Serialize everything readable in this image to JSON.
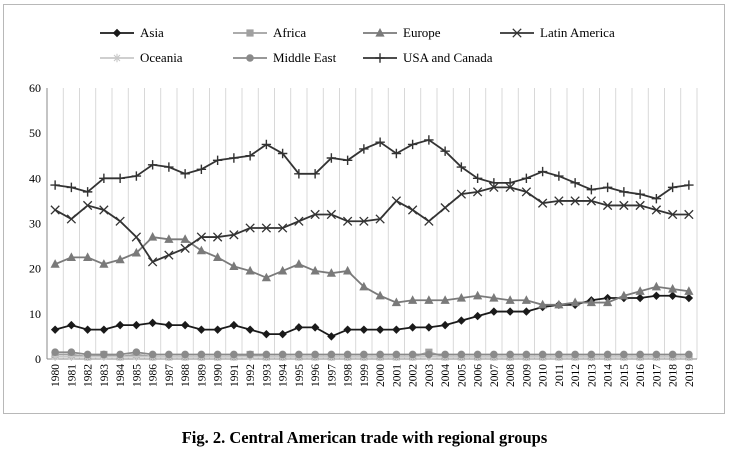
{
  "caption": "Fig. 2. Central American trade with regional groups",
  "chart_data": {
    "type": "line",
    "title": "",
    "xlabel": "",
    "ylabel": "",
    "ylim": [
      0,
      60
    ],
    "yticks": [
      0,
      10,
      20,
      30,
      40,
      50,
      60
    ],
    "grid": "vertical",
    "legend_position": "top",
    "categories": [
      "1980",
      "1981",
      "1982",
      "1983",
      "1984",
      "1985",
      "1986",
      "1987",
      "1988",
      "1989",
      "1990",
      "1991",
      "1992",
      "1993",
      "1994",
      "1995",
      "1996",
      "1997",
      "1998",
      "1999",
      "2000",
      "2001",
      "2002",
      "2003",
      "2004",
      "2005",
      "2006",
      "2007",
      "2008",
      "2009",
      "2010",
      "2011",
      "2012",
      "2013",
      "2014",
      "2015",
      "2016",
      "2017",
      "2018",
      "2019"
    ],
    "series": [
      {
        "name": "Asia",
        "marker": "diamond",
        "color": "#1a1a1a",
        "values": [
          6.5,
          7.5,
          6.5,
          6.5,
          7.5,
          7.5,
          8,
          7.5,
          7.5,
          6.5,
          6.5,
          7.5,
          6.5,
          5.5,
          5.5,
          7,
          7,
          5,
          6.5,
          6.5,
          6.5,
          6.5,
          7,
          7,
          7.5,
          8.5,
          9.5,
          10.5,
          10.5,
          10.5,
          11.5,
          12,
          12,
          13,
          13.5,
          13.5,
          13.5,
          14,
          14,
          13.5
        ]
      },
      {
        "name": "Africa",
        "marker": "square",
        "color": "#a0a0a0",
        "values": [
          1,
          1,
          0.5,
          1,
          0.5,
          1,
          0.5,
          0.5,
          0.5,
          0.5,
          0.5,
          0.5,
          1,
          0.5,
          0.5,
          0.5,
          0.5,
          0.5,
          0.5,
          0.5,
          0.5,
          0.5,
          0.5,
          1.5,
          0.5,
          0.5,
          0.5,
          0.5,
          0.5,
          0.5,
          0.5,
          0.5,
          0.5,
          0.5,
          0.5,
          0.5,
          0.5,
          0.5,
          0.5,
          0.5
        ]
      },
      {
        "name": "Europe",
        "marker": "triangle",
        "color": "#7a7a7a",
        "values": [
          21,
          22.5,
          22.5,
          21,
          22,
          23.5,
          27,
          26.5,
          26.5,
          24,
          22.5,
          20.5,
          19.5,
          18,
          19.5,
          21,
          19.5,
          19,
          19.5,
          16,
          14,
          12.5,
          13,
          13,
          13,
          13.5,
          14,
          13.5,
          13,
          13,
          12,
          12,
          12.5,
          12.5,
          12.5,
          14,
          15,
          16,
          15.5,
          15
        ]
      },
      {
        "name": "Latin America",
        "marker": "x",
        "color": "#333333",
        "values": [
          33,
          31,
          34,
          33,
          30.5,
          27,
          21.5,
          23,
          24.5,
          27,
          27,
          27.5,
          29,
          29,
          29,
          30.5,
          32,
          32,
          30.5,
          30.5,
          31,
          35,
          33,
          30.5,
          33.5,
          36.5,
          37,
          38,
          38,
          37,
          34.5,
          35,
          35,
          35,
          34,
          34,
          34,
          33,
          32,
          32
        ]
      },
      {
        "name": "Oceania",
        "marker": "star",
        "color": "#c8c8c8",
        "values": [
          0.5,
          0.5,
          0.5,
          0.5,
          0.5,
          0.5,
          0.5,
          0.5,
          0.5,
          0.5,
          0.5,
          0.5,
          0.5,
          0.5,
          0.5,
          0.5,
          0.5,
          0.5,
          0.5,
          0.5,
          0.5,
          0.5,
          0.5,
          0.5,
          0.5,
          0.5,
          0.5,
          0.5,
          0.5,
          0.5,
          0.5,
          0.5,
          0.5,
          0.5,
          0.5,
          0.5,
          0.5,
          0.5,
          0.5,
          0.5
        ]
      },
      {
        "name": "Middle East",
        "marker": "circle",
        "color": "#8a8a8a",
        "values": [
          1.5,
          1.5,
          1,
          1,
          1,
          1.5,
          1,
          1,
          1,
          1,
          1,
          1,
          1,
          1,
          1,
          1,
          1,
          1,
          1,
          1,
          1,
          1,
          1,
          1,
          1,
          1,
          1,
          1,
          1,
          1,
          1,
          1,
          1,
          1,
          1,
          1,
          1,
          1,
          1,
          1
        ]
      },
      {
        "name": "USA and Canada",
        "marker": "plus",
        "color": "#333333",
        "values": [
          38.5,
          38,
          37,
          40,
          40,
          40.5,
          43,
          42.5,
          41,
          42,
          44,
          44.5,
          45,
          47.5,
          45.5,
          41,
          41,
          44.5,
          44,
          46.5,
          48,
          45.5,
          47.5,
          48.5,
          46,
          42.5,
          40,
          39,
          39,
          40,
          41.5,
          40.5,
          39,
          37.5,
          38,
          37,
          36.5,
          35.5,
          38,
          38.5
        ]
      }
    ]
  }
}
